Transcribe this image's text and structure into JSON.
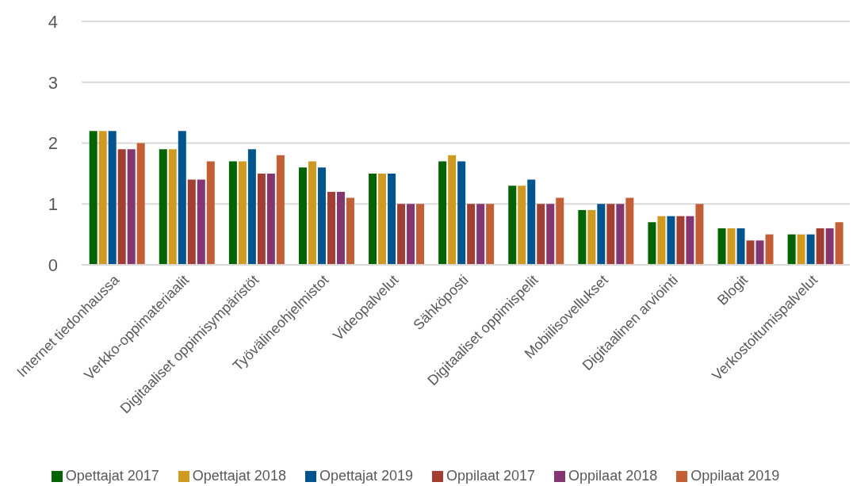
{
  "chart_data": {
    "type": "bar",
    "categories": [
      "Internet tiedonhaussa",
      "Verkko-oppimateriaalit",
      "Digitaaliset oppimisympäristöt",
      "Työvälineohjelmistot",
      "Videopalvelut",
      "Sähköposti",
      "Digitaaliset oppimispelit",
      "Mobiilisovellukset",
      "Digitaalinen arviointi",
      "Blogit",
      "Verkostoitumispalvelut"
    ],
    "series": [
      {
        "name": "Opettajat 2017",
        "color": "#036403",
        "values": [
          2.2,
          1.9,
          1.7,
          1.6,
          1.5,
          1.7,
          1.3,
          0.9,
          0.7,
          0.6,
          0.5
        ]
      },
      {
        "name": "Opettajat 2018",
        "color": "#d09a20",
        "values": [
          2.2,
          1.9,
          1.7,
          1.7,
          1.5,
          1.8,
          1.3,
          0.9,
          0.8,
          0.6,
          0.5
        ]
      },
      {
        "name": "Opettajat 2019",
        "color": "#00558f",
        "values": [
          2.2,
          2.2,
          1.9,
          1.6,
          1.5,
          1.7,
          1.4,
          1.0,
          0.8,
          0.6,
          0.5
        ]
      },
      {
        "name": "Oppilaat 2017",
        "color": "#a33e32",
        "values": [
          1.9,
          1.4,
          1.5,
          1.2,
          1.0,
          1.0,
          1.0,
          1.0,
          0.8,
          0.4,
          0.6
        ]
      },
      {
        "name": "Oppilaat 2018",
        "color": "#843670",
        "values": [
          1.9,
          1.4,
          1.5,
          1.2,
          1.0,
          1.0,
          1.0,
          1.0,
          0.8,
          0.4,
          0.6
        ]
      },
      {
        "name": "Oppilaat 2019",
        "color": "#c45e35",
        "values": [
          2.0,
          1.7,
          1.8,
          1.1,
          1.0,
          1.0,
          1.1,
          1.1,
          1.0,
          0.5,
          0.7
        ]
      }
    ],
    "ylim": [
      0,
      4
    ],
    "yticks": [
      0,
      1,
      2,
      3,
      4
    ],
    "grid": "y",
    "legend": "bottom"
  }
}
